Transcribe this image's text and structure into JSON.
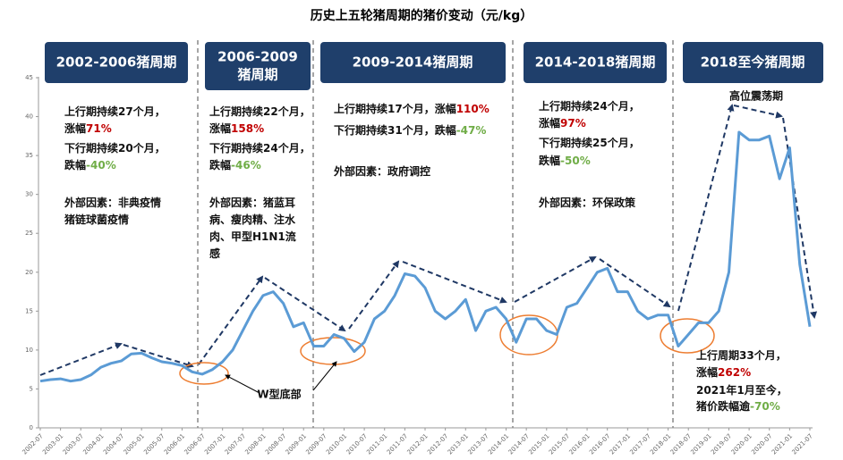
{
  "chart_data": {
    "type": "line",
    "title": "历史上五轮猪周期的猪价变动（元/kg）",
    "categories": [
      "2002-07",
      null,
      "2003-01",
      null,
      "2003-07",
      null,
      "2004-01",
      null,
      "2004-07",
      null,
      "2005-01",
      null,
      "2005-07",
      null,
      "2006-01",
      null,
      "2006-07",
      null,
      "2007-01",
      null,
      "2007-07",
      null,
      "2008-01",
      null,
      "2008-07",
      null,
      "2009-01",
      null,
      "2009-07",
      null,
      "2010-01",
      null,
      "2010-07",
      null,
      "2011-01",
      null,
      "2011-07",
      null,
      "2012-01",
      null,
      "2012-07",
      null,
      "2013-01",
      null,
      "2013-07",
      null,
      "2014-01",
      null,
      "2014-07",
      null,
      "2015-01",
      null,
      "2015-07",
      null,
      "2016-01",
      null,
      "2016-07",
      null,
      "2017-01",
      null,
      "2017-07",
      null,
      "2018-01",
      null,
      "2018-07",
      null,
      "2019-01",
      null,
      "2019-07",
      null,
      "2020-01",
      null,
      "2020-07",
      null,
      "2021-01",
      null,
      "2021-07"
    ],
    "values": [
      6.0,
      6.2,
      6.3,
      6.0,
      6.2,
      6.8,
      7.8,
      8.3,
      8.6,
      9.5,
      9.6,
      9.0,
      8.5,
      8.3,
      8.0,
      7.2,
      6.9,
      7.5,
      8.5,
      10.0,
      12.5,
      15.0,
      17.0,
      17.5,
      16.0,
      13.0,
      13.5,
      10.5,
      10.5,
      12.0,
      11.5,
      9.8,
      11.0,
      14.0,
      15.0,
      17.0,
      19.8,
      19.5,
      18.0,
      15.0,
      14.0,
      15.0,
      16.5,
      12.5,
      15.0,
      15.5,
      14.0,
      11.0,
      14.0,
      14.0,
      12.5,
      12.0,
      15.5,
      16.0,
      18.0,
      20.0,
      20.5,
      17.5,
      17.5,
      15.0,
      14.0,
      14.5,
      14.5,
      10.5,
      12.0,
      13.5,
      13.5,
      15.0,
      20.0,
      38.0,
      37.0,
      37.0,
      37.5,
      32.0,
      36.0,
      21.0,
      13.0
    ],
    "color": "#5b9bd5",
    "ylim": [
      0,
      45
    ],
    "yticks": [
      0,
      5,
      10,
      15,
      20,
      25,
      30,
      35,
      40,
      45
    ],
    "annotations": [
      "W型底部",
      "高位震荡期"
    ],
    "periods": [
      {
        "title_lines": [
          "2002-2006猪周期"
        ],
        "lines": [
          [
            "上行期持续27个月，"
          ],
          [
            "涨幅",
            {
              "text": "71%",
              "color": "#c00000"
            }
          ],
          [
            "下行期持续20个月，"
          ],
          [
            "跌幅",
            {
              "text": "-40%",
              "color": "#70ad47"
            }
          ],
          [
            "外部因素：非典疫情"
          ],
          [
            "猪链球菌疫情"
          ]
        ]
      },
      {
        "title_lines": [
          "2006-2009",
          "猪周期"
        ],
        "lines": [
          [
            "上行期持续22个月，"
          ],
          [
            "涨幅",
            {
              "text": "158%",
              "color": "#c00000"
            }
          ],
          [
            "下行期持续24个月，"
          ],
          [
            "跌幅",
            {
              "text": "-46%",
              "color": "#70ad47"
            }
          ],
          [
            "外部因素：猪蓝耳"
          ],
          [
            "病、瘦肉精、注水"
          ],
          [
            "肉、甲型H1N1流"
          ],
          [
            "感"
          ]
        ]
      },
      {
        "title_lines": [
          "2009-2014猪周期"
        ],
        "lines": [
          [
            "上行期持续17个月，涨幅",
            {
              "text": "110%",
              "color": "#c00000"
            }
          ],
          [
            "下行期持续31个月，跌幅",
            {
              "text": "-47%",
              "color": "#70ad47"
            }
          ],
          [
            "外部因素：政府调控"
          ]
        ]
      },
      {
        "title_lines": [
          "2014-2018猪周期"
        ],
        "lines": [
          [
            "上行期持续24个月，"
          ],
          [
            "涨幅",
            {
              "text": "97%",
              "color": "#c00000"
            }
          ],
          [
            "下行期持续25个月，"
          ],
          [
            "跌幅",
            {
              "text": "-50%",
              "color": "#70ad47"
            }
          ],
          [
            "外部因素：环保政策"
          ]
        ]
      },
      {
        "title_lines": [
          "2018至今猪周期"
        ],
        "lines": [
          [
            "上行周期33个月，"
          ],
          [
            "涨幅",
            {
              "text": "262%",
              "color": "#c00000"
            }
          ],
          [
            "2021年1月至今，"
          ],
          [
            "猪价跌幅逾",
            {
              "text": "-70%",
              "color": "#70ad47"
            }
          ]
        ]
      }
    ]
  }
}
